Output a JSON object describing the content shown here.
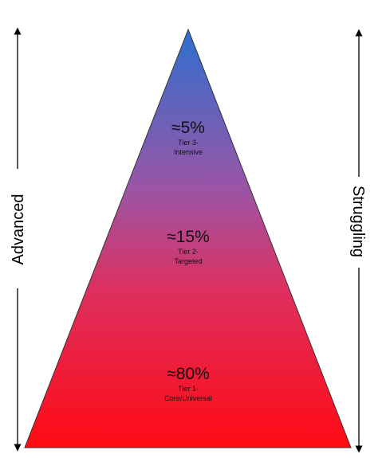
{
  "left_axis": {
    "label": "Advanced"
  },
  "right_axis": {
    "label": "Struggling"
  },
  "tiers": [
    {
      "percent": "≈5%",
      "name_line1": "Tier 3-",
      "name_line2": "Intensive"
    },
    {
      "percent": "≈15%",
      "name_line1": "Tier 2-",
      "name_line2": "Targeted"
    },
    {
      "percent": "≈80%",
      "name_line1": "Tier 1-",
      "name_line2": "Core/Universal"
    }
  ],
  "colors": {
    "apex": "#2f6fcf",
    "middle": "#9a55a6",
    "base": "#ff0a14",
    "outline": "#333333",
    "arrow": "#000000"
  }
}
